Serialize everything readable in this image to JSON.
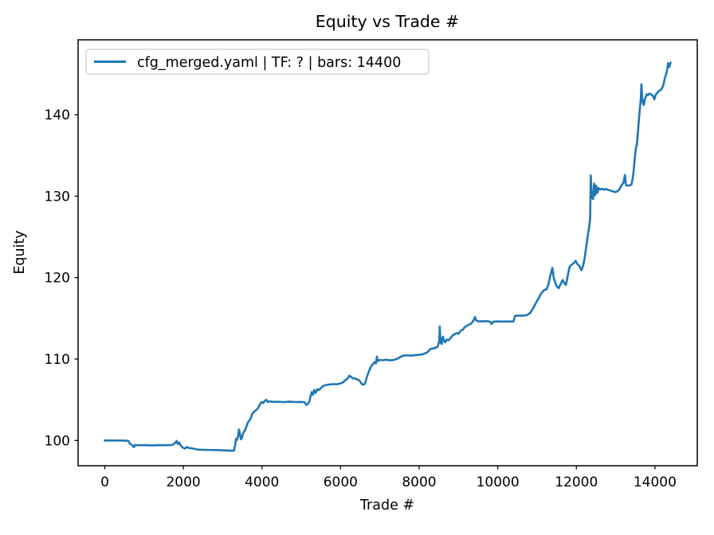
{
  "colors": {
    "line": "#1f77b4",
    "axes": "#000000",
    "legend_border": "#cccccc",
    "background": "#ffffff"
  },
  "chart_data": {
    "type": "line",
    "title": "Equity vs Trade #",
    "xlabel": "Trade #",
    "ylabel": "Equity",
    "xlim": [
      -679,
      15077
    ],
    "ylim": [
      96.9,
      149.2
    ],
    "xticks": [
      0,
      2000,
      4000,
      6000,
      8000,
      10000,
      12000,
      14000
    ],
    "yticks": [
      100,
      110,
      120,
      130,
      140
    ],
    "grid": false,
    "legend": {
      "position": "upper-left",
      "entries": [
        {
          "label": "cfg_merged.yaml | TF: ? | bars: 14400",
          "color": "#1f77b4"
        }
      ]
    },
    "series": [
      {
        "name": "cfg_merged.yaml | TF: ? | bars: 14400",
        "color": "#1f77b4",
        "points": [
          [
            0,
            100
          ],
          [
            150,
            100
          ],
          [
            300,
            100
          ],
          [
            450,
            100
          ],
          [
            600,
            99.95
          ],
          [
            640,
            99.6
          ],
          [
            680,
            99.5
          ],
          [
            720,
            99.28
          ],
          [
            745,
            99.2
          ],
          [
            770,
            99.45
          ],
          [
            820,
            99.42
          ],
          [
            1000,
            99.42
          ],
          [
            1200,
            99.4
          ],
          [
            1400,
            99.42
          ],
          [
            1600,
            99.42
          ],
          [
            1720,
            99.45
          ],
          [
            1790,
            99.7
          ],
          [
            1830,
            99.95
          ],
          [
            1860,
            99.55
          ],
          [
            1890,
            99.75
          ],
          [
            1930,
            99.4
          ],
          [
            1980,
            99.15
          ],
          [
            2040,
            99.0
          ],
          [
            2090,
            99.2
          ],
          [
            2140,
            99.08
          ],
          [
            2200,
            99.05
          ],
          [
            2300,
            98.95
          ],
          [
            2400,
            98.87
          ],
          [
            2550,
            98.85
          ],
          [
            2700,
            98.83
          ],
          [
            2850,
            98.82
          ],
          [
            3000,
            98.8
          ],
          [
            3100,
            98.78
          ],
          [
            3220,
            98.74
          ],
          [
            3290,
            98.76
          ],
          [
            3320,
            99.5
          ],
          [
            3340,
            100.2
          ],
          [
            3365,
            100.05
          ],
          [
            3395,
            100.6
          ],
          [
            3415,
            101.35
          ],
          [
            3440,
            100.8
          ],
          [
            3465,
            100.15
          ],
          [
            3490,
            100.3
          ],
          [
            3520,
            100.9
          ],
          [
            3555,
            101.15
          ],
          [
            3590,
            101.5
          ],
          [
            3640,
            102.2
          ],
          [
            3700,
            102.55
          ],
          [
            3755,
            103.3
          ],
          [
            3810,
            103.6
          ],
          [
            3860,
            103.75
          ],
          [
            3910,
            104.05
          ],
          [
            3955,
            104.5
          ],
          [
            3990,
            104.72
          ],
          [
            4030,
            104.6
          ],
          [
            4070,
            104.85
          ],
          [
            4110,
            105.0
          ],
          [
            4150,
            104.72
          ],
          [
            4200,
            104.82
          ],
          [
            4260,
            104.75
          ],
          [
            4400,
            104.75
          ],
          [
            4550,
            104.72
          ],
          [
            4700,
            104.76
          ],
          [
            4850,
            104.72
          ],
          [
            5000,
            104.74
          ],
          [
            5090,
            104.68
          ],
          [
            5130,
            104.38
          ],
          [
            5170,
            104.48
          ],
          [
            5210,
            104.85
          ],
          [
            5245,
            105.62
          ],
          [
            5270,
            105.95
          ],
          [
            5300,
            105.6
          ],
          [
            5330,
            106.2
          ],
          [
            5365,
            105.85
          ],
          [
            5410,
            106.3
          ],
          [
            5455,
            106.2
          ],
          [
            5510,
            106.5
          ],
          [
            5570,
            106.72
          ],
          [
            5640,
            106.82
          ],
          [
            5720,
            106.88
          ],
          [
            5810,
            106.92
          ],
          [
            5900,
            106.9
          ],
          [
            6000,
            107.02
          ],
          [
            6060,
            107.12
          ],
          [
            6120,
            107.42
          ],
          [
            6180,
            107.6
          ],
          [
            6220,
            107.95
          ],
          [
            6260,
            107.85
          ],
          [
            6310,
            107.62
          ],
          [
            6360,
            107.65
          ],
          [
            6420,
            107.5
          ],
          [
            6480,
            107.38
          ],
          [
            6530,
            107.0
          ],
          [
            6570,
            106.85
          ],
          [
            6620,
            106.95
          ],
          [
            6670,
            107.8
          ],
          [
            6710,
            108.35
          ],
          [
            6760,
            108.95
          ],
          [
            6810,
            109.3
          ],
          [
            6860,
            109.6
          ],
          [
            6900,
            109.45
          ],
          [
            6925,
            110.3
          ],
          [
            6950,
            109.75
          ],
          [
            7000,
            109.9
          ],
          [
            7080,
            109.85
          ],
          [
            7160,
            109.92
          ],
          [
            7250,
            109.85
          ],
          [
            7350,
            109.88
          ],
          [
            7450,
            110.05
          ],
          [
            7530,
            110.28
          ],
          [
            7600,
            110.42
          ],
          [
            7700,
            110.45
          ],
          [
            7800,
            110.42
          ],
          [
            7900,
            110.48
          ],
          [
            8000,
            110.52
          ],
          [
            8100,
            110.6
          ],
          [
            8200,
            110.8
          ],
          [
            8290,
            111.25
          ],
          [
            8400,
            111.35
          ],
          [
            8470,
            111.5
          ],
          [
            8510,
            112.2
          ],
          [
            8525,
            114.0
          ],
          [
            8545,
            112.0
          ],
          [
            8575,
            111.85
          ],
          [
            8605,
            112.75
          ],
          [
            8635,
            112.2
          ],
          [
            8665,
            112.05
          ],
          [
            8700,
            112.4
          ],
          [
            8750,
            112.3
          ],
          [
            8800,
            112.6
          ],
          [
            8855,
            112.9
          ],
          [
            8905,
            113.05
          ],
          [
            8955,
            113.2
          ],
          [
            9005,
            113.1
          ],
          [
            9060,
            113.5
          ],
          [
            9110,
            113.6
          ],
          [
            9160,
            113.9
          ],
          [
            9215,
            114.1
          ],
          [
            9265,
            114.2
          ],
          [
            9320,
            114.35
          ],
          [
            9380,
            114.7
          ],
          [
            9420,
            115.15
          ],
          [
            9450,
            114.75
          ],
          [
            9490,
            114.65
          ],
          [
            9600,
            114.62
          ],
          [
            9700,
            114.66
          ],
          [
            9800,
            114.6
          ],
          [
            9845,
            114.3
          ],
          [
            9890,
            114.6
          ],
          [
            10000,
            114.62
          ],
          [
            10150,
            114.6
          ],
          [
            10300,
            114.62
          ],
          [
            10400,
            114.6
          ],
          [
            10440,
            115.3
          ],
          [
            10550,
            115.35
          ],
          [
            10650,
            115.32
          ],
          [
            10750,
            115.4
          ],
          [
            10830,
            115.7
          ],
          [
            10890,
            116.15
          ],
          [
            10940,
            116.6
          ],
          [
            10990,
            117.05
          ],
          [
            11040,
            117.45
          ],
          [
            11090,
            117.95
          ],
          [
            11140,
            118.25
          ],
          [
            11190,
            118.5
          ],
          [
            11240,
            118.55
          ],
          [
            11290,
            119.2
          ],
          [
            11340,
            120.3
          ],
          [
            11390,
            121.2
          ],
          [
            11420,
            120.1
          ],
          [
            11455,
            119.5
          ],
          [
            11500,
            118.95
          ],
          [
            11550,
            118.7
          ],
          [
            11600,
            119.2
          ],
          [
            11650,
            119.7
          ],
          [
            11700,
            119.3
          ],
          [
            11735,
            119.1
          ],
          [
            11780,
            120.2
          ],
          [
            11830,
            121.35
          ],
          [
            11880,
            121.6
          ],
          [
            11930,
            121.75
          ],
          [
            11980,
            122.05
          ],
          [
            12030,
            121.65
          ],
          [
            12080,
            121.4
          ],
          [
            12130,
            120.9
          ],
          [
            12175,
            121.5
          ],
          [
            12215,
            122.5
          ],
          [
            12255,
            123.9
          ],
          [
            12295,
            125.3
          ],
          [
            12325,
            126.2
          ],
          [
            12350,
            127.2
          ],
          [
            12368,
            132.55
          ],
          [
            12385,
            130.0
          ],
          [
            12405,
            129.8
          ],
          [
            12425,
            129.65
          ],
          [
            12450,
            131.55
          ],
          [
            12480,
            130.1
          ],
          [
            12505,
            131.3
          ],
          [
            12535,
            130.4
          ],
          [
            12565,
            131.0
          ],
          [
            12600,
            130.8
          ],
          [
            12650,
            130.9
          ],
          [
            12700,
            130.8
          ],
          [
            12750,
            130.88
          ],
          [
            12800,
            130.78
          ],
          [
            12860,
            130.7
          ],
          [
            12920,
            130.6
          ],
          [
            12980,
            130.5
          ],
          [
            13040,
            130.58
          ],
          [
            13100,
            130.85
          ],
          [
            13150,
            131.35
          ],
          [
            13200,
            131.65
          ],
          [
            13235,
            132.6
          ],
          [
            13265,
            131.35
          ],
          [
            13310,
            131.3
          ],
          [
            13360,
            131.3
          ],
          [
            13405,
            131.45
          ],
          [
            13435,
            132.2
          ],
          [
            13460,
            133.2
          ],
          [
            13480,
            134.3
          ],
          [
            13500,
            135.3
          ],
          [
            13520,
            136.0
          ],
          [
            13540,
            136.3
          ],
          [
            13560,
            137.4
          ],
          [
            13580,
            138.7
          ],
          [
            13600,
            139.9
          ],
          [
            13620,
            140.9
          ],
          [
            13640,
            141.9
          ],
          [
            13655,
            143.75
          ],
          [
            13675,
            142.05
          ],
          [
            13695,
            141.45
          ],
          [
            13715,
            141.2
          ],
          [
            13740,
            141.8
          ],
          [
            13765,
            142.2
          ],
          [
            13790,
            142.5
          ],
          [
            13820,
            142.4
          ],
          [
            13860,
            142.6
          ],
          [
            13900,
            142.5
          ],
          [
            13950,
            142.3
          ],
          [
            13985,
            141.9
          ],
          [
            14020,
            142.45
          ],
          [
            14060,
            142.7
          ],
          [
            14110,
            142.95
          ],
          [
            14160,
            143.1
          ],
          [
            14210,
            143.55
          ],
          [
            14255,
            144.55
          ],
          [
            14300,
            145.2
          ],
          [
            14335,
            146.35
          ],
          [
            14365,
            145.85
          ],
          [
            14400,
            146.4
          ]
        ]
      }
    ]
  }
}
